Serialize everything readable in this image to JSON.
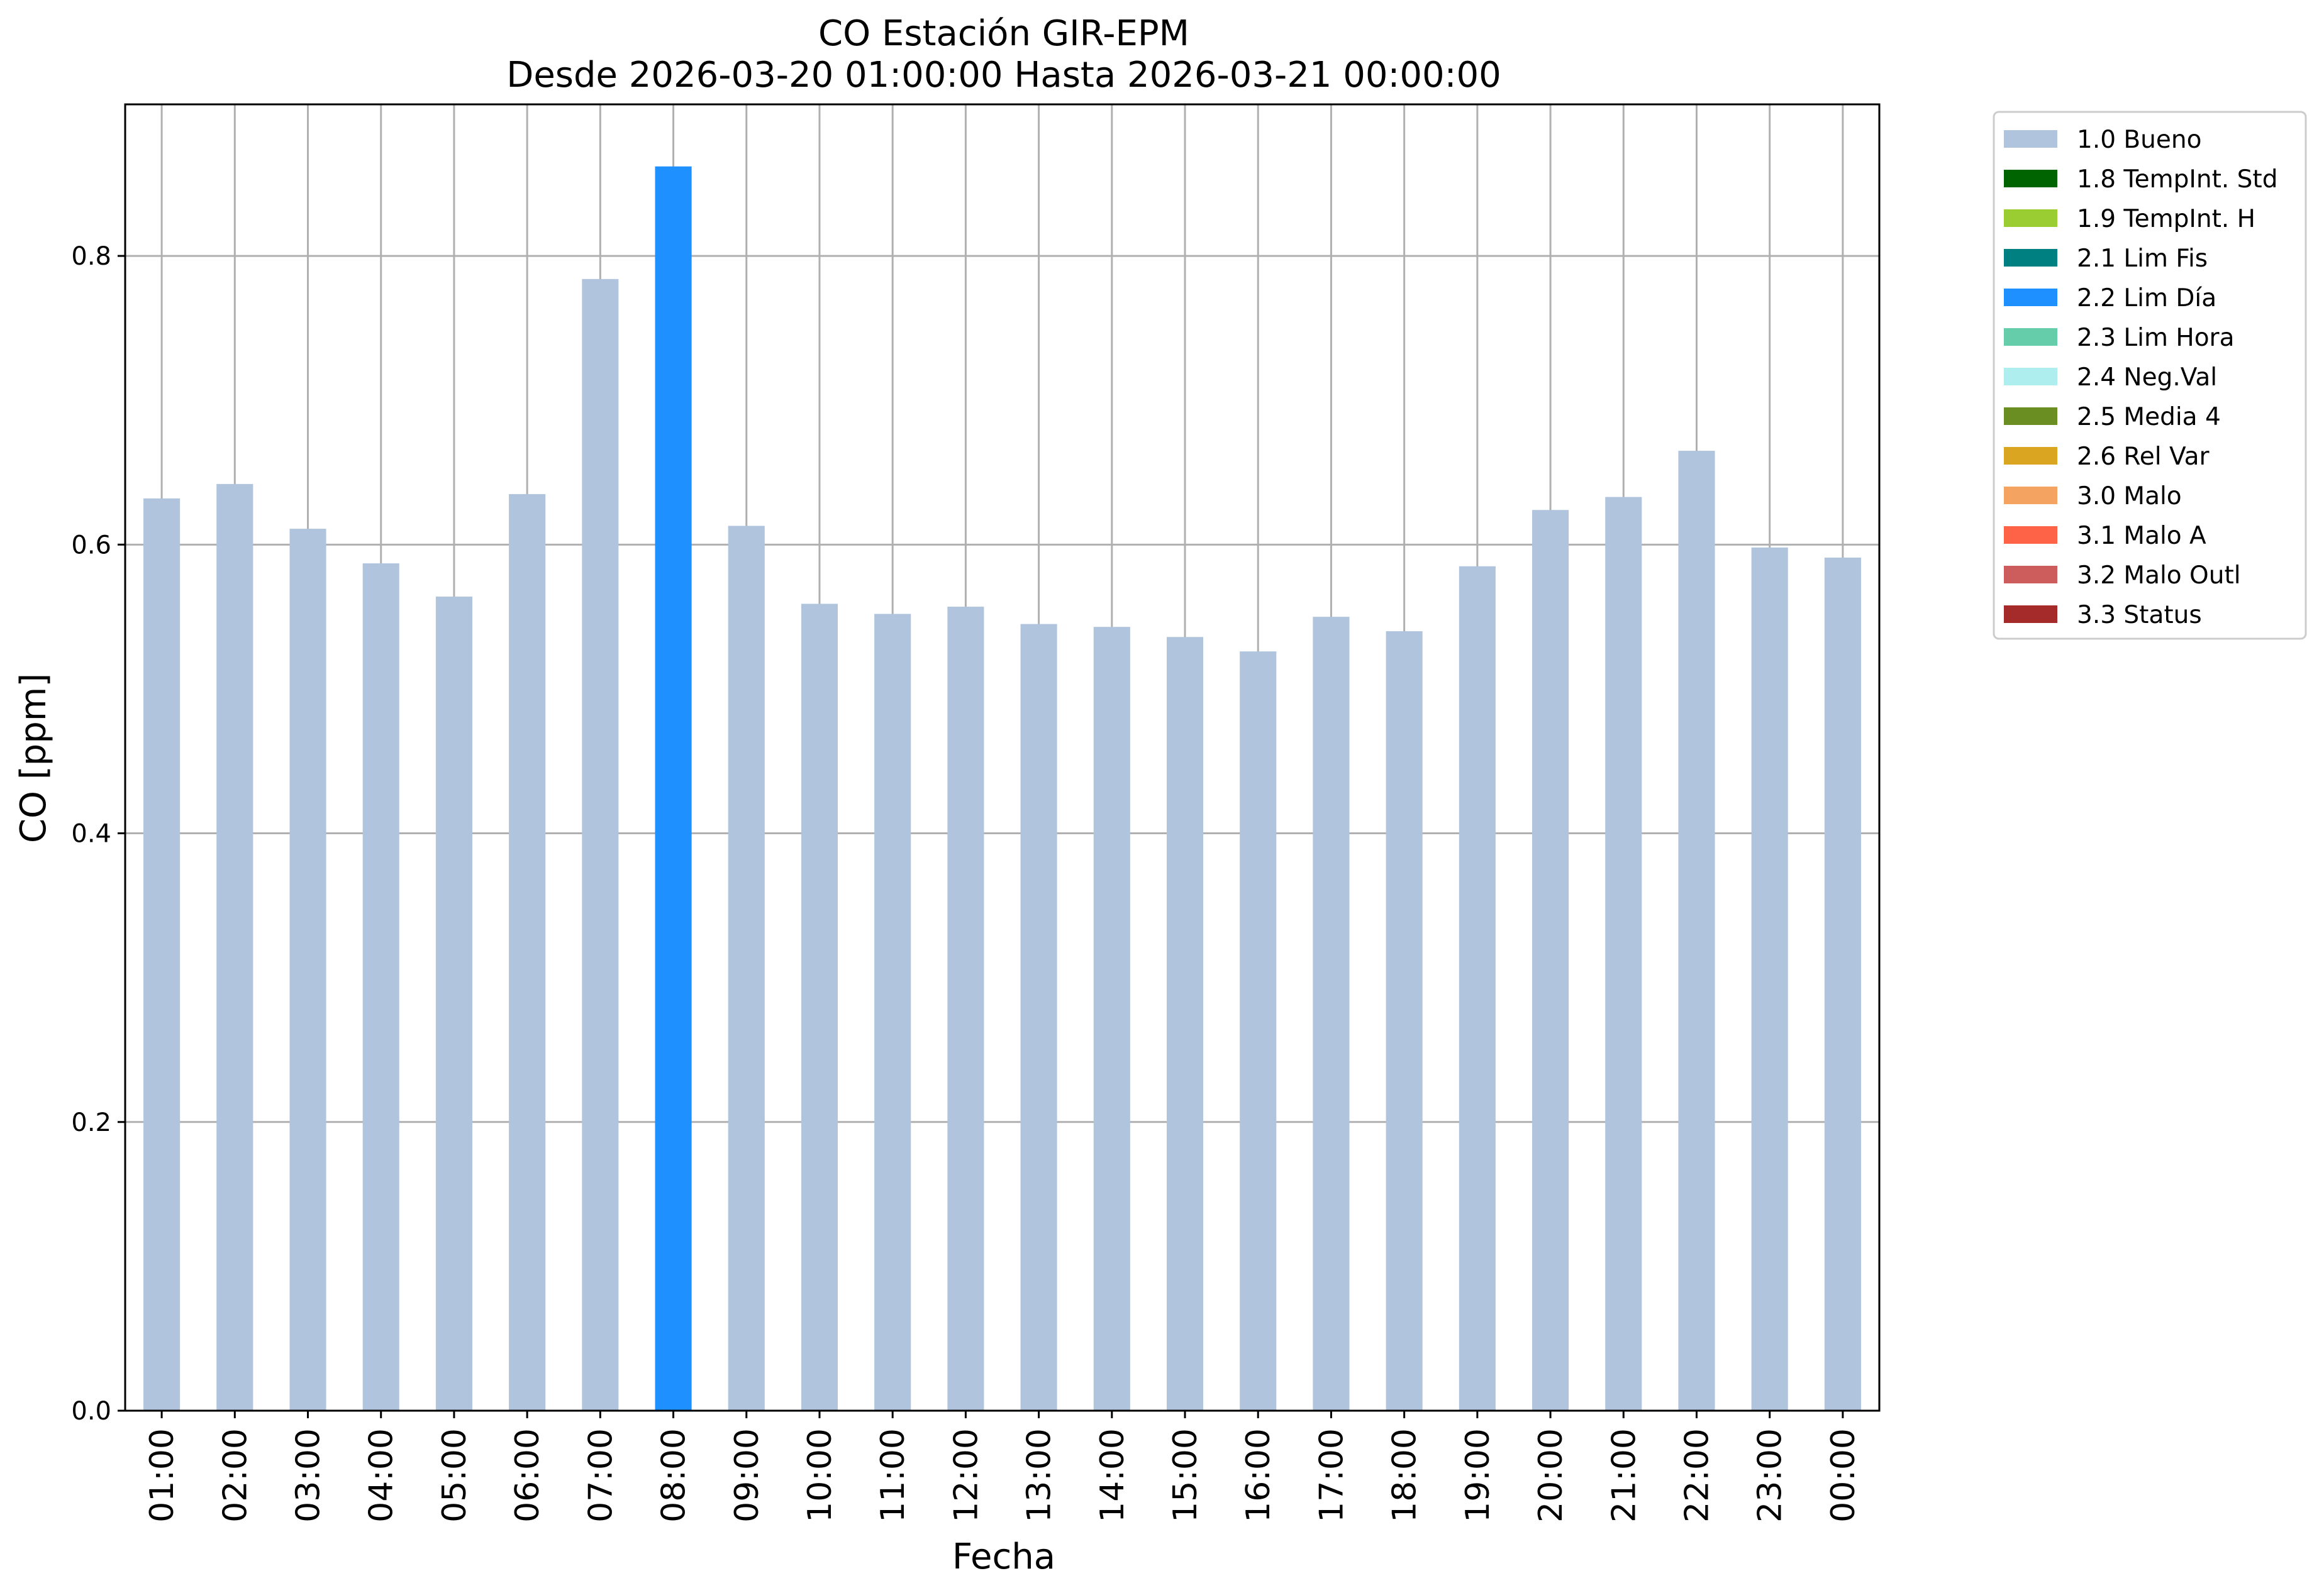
{
  "chart_data": {
    "type": "bar",
    "title": "CO Estación GIR-EPM",
    "subtitle": "Desde 2026-03-20 01:00:00 Hasta 2026-03-21 00:00:00",
    "xlabel": "Fecha",
    "ylabel": "CO [ppm]",
    "ylim": [
      0,
      0.905
    ],
    "yticks": [
      "0.0",
      "0.2",
      "0.4",
      "0.6",
      "0.8"
    ],
    "grid": true,
    "legend_position": "outside-top-right",
    "categories": [
      "01:00",
      "02:00",
      "03:00",
      "04:00",
      "05:00",
      "06:00",
      "07:00",
      "08:00",
      "09:00",
      "10:00",
      "11:00",
      "12:00",
      "13:00",
      "14:00",
      "15:00",
      "16:00",
      "17:00",
      "18:00",
      "19:00",
      "20:00",
      "21:00",
      "22:00",
      "23:00",
      "00:00"
    ],
    "values": [
      0.632,
      0.642,
      0.611,
      0.587,
      0.564,
      0.635,
      0.784,
      0.862,
      0.613,
      0.559,
      0.552,
      0.557,
      0.545,
      0.543,
      0.536,
      0.526,
      0.55,
      0.54,
      0.585,
      0.624,
      0.633,
      0.665,
      0.598,
      0.591
    ],
    "flags": [
      "1.0 Bueno",
      "1.0 Bueno",
      "1.0 Bueno",
      "1.0 Bueno",
      "1.0 Bueno",
      "1.0 Bueno",
      "1.0 Bueno",
      "2.2 Lim Día",
      "1.0 Bueno",
      "1.0 Bueno",
      "1.0 Bueno",
      "1.0 Bueno",
      "1.0 Bueno",
      "1.0 Bueno",
      "1.0 Bueno",
      "1.0 Bueno",
      "1.0 Bueno",
      "1.0 Bueno",
      "1.0 Bueno",
      "1.0 Bueno",
      "1.0 Bueno",
      "1.0 Bueno",
      "1.0 Bueno",
      "1.0 Bueno"
    ],
    "legend": [
      {
        "label": "1.0 Bueno",
        "color": "#b0c4de"
      },
      {
        "label": "1.8 TempInt. Std",
        "color": "#006400"
      },
      {
        "label": "1.9 TempInt. H",
        "color": "#9acd32"
      },
      {
        "label": "2.1 Lim Fis",
        "color": "#008080"
      },
      {
        "label": "2.2 Lim Día",
        "color": "#1e90ff"
      },
      {
        "label": "2.3 Lim Hora",
        "color": "#66cdaa"
      },
      {
        "label": "2.4 Neg.Val",
        "color": "#afeeee"
      },
      {
        "label": "2.5 Media 4",
        "color": "#6b8e23"
      },
      {
        "label": "2.6 Rel Var",
        "color": "#daa520"
      },
      {
        "label": "3.0 Malo",
        "color": "#f4a460"
      },
      {
        "label": "3.1 Malo A",
        "color": "#ff6347"
      },
      {
        "label": "3.2 Malo Outl",
        "color": "#cd5c5c"
      },
      {
        "label": "3.3 Status",
        "color": "#a52a2a"
      }
    ]
  }
}
